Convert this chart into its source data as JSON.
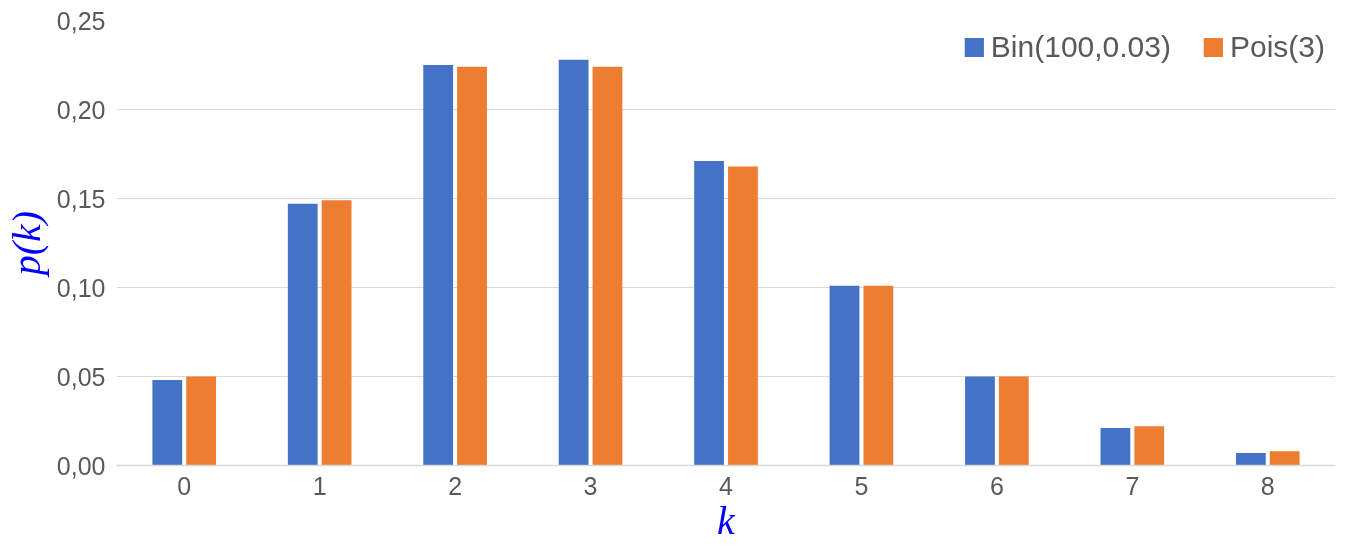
{
  "chart_data": {
    "type": "bar",
    "xlabel": "k",
    "ylabel": "p(k)",
    "categories": [
      "0",
      "1",
      "2",
      "3",
      "4",
      "5",
      "6",
      "7",
      "8"
    ],
    "series": [
      {
        "name": "Bin(100,0.03)",
        "color": "#4472c4",
        "values": [
          0.048,
          0.147,
          0.225,
          0.228,
          0.171,
          0.101,
          0.05,
          0.021,
          0.007
        ]
      },
      {
        "name": "Pois(3)",
        "color": "#ed7d31",
        "values": [
          0.05,
          0.149,
          0.224,
          0.224,
          0.168,
          0.101,
          0.05,
          0.022,
          0.008
        ]
      }
    ],
    "ylim": [
      0,
      0.25
    ],
    "yticks": [
      {
        "value": 0,
        "label": "0,00"
      },
      {
        "value": 0.05,
        "label": "0,05"
      },
      {
        "value": 0.1,
        "label": "0,10"
      },
      {
        "value": 0.15,
        "label": "0,15"
      },
      {
        "value": 0.2,
        "label": "0,20"
      },
      {
        "value": 0.25,
        "label": "0,25"
      }
    ],
    "grid": "y",
    "legend": "top right"
  }
}
